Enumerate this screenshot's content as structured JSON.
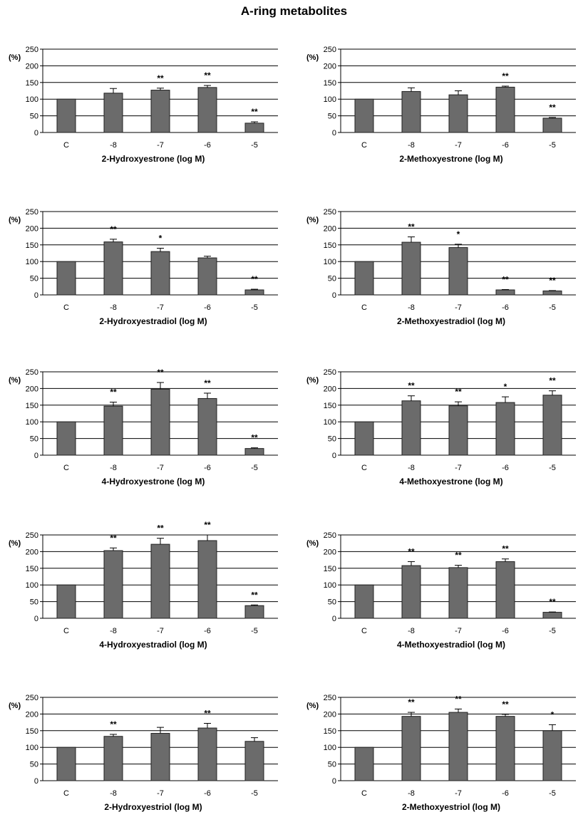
{
  "title": "A-ring metabolites",
  "colors": {
    "bar": "#6b6b6b",
    "axis": "#000000",
    "grid": "#000000"
  },
  "chart_data": [
    {
      "type": "bar",
      "xlabel": "2-Hydroxyestrone (log M)",
      "ylabel": "(%)",
      "categories": [
        "C",
        "-8",
        "-7",
        "-6",
        "-5"
      ],
      "values": [
        100,
        118,
        127,
        135,
        28
      ],
      "errors": [
        0,
        14,
        6,
        6,
        4
      ],
      "significance": [
        "",
        "",
        "**",
        "**",
        "**"
      ],
      "ylim": [
        0,
        250
      ],
      "yticks": [
        0,
        50,
        100,
        150,
        200,
        250
      ],
      "grid": true
    },
    {
      "type": "bar",
      "xlabel": "2-Methoxyestrone (log M)",
      "ylabel": "(%)",
      "categories": [
        "C",
        "-8",
        "-7",
        "-6",
        "-5"
      ],
      "values": [
        100,
        123,
        113,
        136,
        43
      ],
      "errors": [
        0,
        11,
        12,
        3,
        2
      ],
      "significance": [
        "",
        "",
        "",
        "**",
        "**"
      ],
      "ylim": [
        0,
        250
      ],
      "yticks": [
        0,
        50,
        100,
        150,
        200,
        250
      ],
      "grid": true
    },
    {
      "type": "bar",
      "xlabel": "2-Hydroxyestradiol (log M)",
      "ylabel": "(%)",
      "categories": [
        "C",
        "-8",
        "-7",
        "-6",
        "-5"
      ],
      "values": [
        100,
        159,
        130,
        111,
        15
      ],
      "errors": [
        0,
        8,
        10,
        5,
        2
      ],
      "significance": [
        "",
        "**",
        "*",
        "",
        "**"
      ],
      "ylim": [
        0,
        250
      ],
      "yticks": [
        0,
        50,
        100,
        150,
        200,
        250
      ],
      "grid": true
    },
    {
      "type": "bar",
      "xlabel": "2-Methoxyestradiol (log M)",
      "ylabel": "(%)",
      "categories": [
        "C",
        "-8",
        "-7",
        "-6",
        "-5"
      ],
      "values": [
        100,
        158,
        142,
        15,
        12
      ],
      "errors": [
        0,
        16,
        10,
        1,
        1
      ],
      "significance": [
        "",
        "**",
        "*",
        "**",
        "**"
      ],
      "ylim": [
        0,
        250
      ],
      "yticks": [
        0,
        50,
        100,
        150,
        200,
        250
      ],
      "grid": true
    },
    {
      "type": "bar",
      "xlabel": "4-Hydroxyestrone (log M)",
      "ylabel": "(%)",
      "categories": [
        "C",
        "-8",
        "-7",
        "-6",
        "-5"
      ],
      "values": [
        100,
        147,
        198,
        170,
        20
      ],
      "errors": [
        0,
        12,
        20,
        16,
        2
      ],
      "significance": [
        "",
        "**",
        "**",
        "**",
        "**"
      ],
      "ylim": [
        0,
        250
      ],
      "yticks": [
        0,
        50,
        100,
        150,
        200,
        250
      ],
      "grid": true
    },
    {
      "type": "bar",
      "xlabel": "4-Methoxyestrone (log M)",
      "ylabel": "(%)",
      "categories": [
        "C",
        "-8",
        "-7",
        "-6",
        "-5"
      ],
      "values": [
        100,
        163,
        148,
        158,
        180
      ],
      "errors": [
        0,
        15,
        12,
        17,
        13
      ],
      "significance": [
        "",
        "**",
        "**",
        "*",
        "**"
      ],
      "ylim": [
        0,
        250
      ],
      "yticks": [
        0,
        50,
        100,
        150,
        200,
        250
      ],
      "grid": true
    },
    {
      "type": "bar",
      "xlabel": "4-Hydroxyestradiol (log M)",
      "ylabel": "(%)",
      "categories": [
        "C",
        "-8",
        "-7",
        "-6",
        "-5"
      ],
      "values": [
        100,
        203,
        222,
        233,
        38
      ],
      "errors": [
        0,
        8,
        18,
        17,
        2
      ],
      "significance": [
        "",
        "**",
        "**",
        "**",
        "**"
      ],
      "ylim": [
        0,
        250
      ],
      "yticks": [
        0,
        50,
        100,
        150,
        200,
        250
      ],
      "grid": true
    },
    {
      "type": "bar",
      "xlabel": "4-Methoxyestradiol (log M)",
      "ylabel": "(%)",
      "categories": [
        "C",
        "-8",
        "-7",
        "-6",
        "-5"
      ],
      "values": [
        100,
        158,
        152,
        170,
        18
      ],
      "errors": [
        0,
        12,
        7,
        8,
        1
      ],
      "significance": [
        "",
        "**",
        "**",
        "**",
        "**"
      ],
      "ylim": [
        0,
        250
      ],
      "yticks": [
        0,
        50,
        100,
        150,
        200,
        250
      ],
      "grid": true
    },
    {
      "type": "bar",
      "xlabel": "2-Hydroxyestriol (log M)",
      "ylabel": "(%)",
      "categories": [
        "C",
        "-8",
        "-7",
        "-6",
        "-5"
      ],
      "values": [
        100,
        133,
        142,
        158,
        118
      ],
      "errors": [
        0,
        6,
        18,
        14,
        11
      ],
      "significance": [
        "",
        "**",
        "",
        "**",
        ""
      ],
      "ylim": [
        0,
        250
      ],
      "yticks": [
        0,
        50,
        100,
        150,
        200,
        250
      ],
      "grid": true
    },
    {
      "type": "bar",
      "xlabel": "2-Methoxyestriol (log M)",
      "ylabel": "(%)",
      "categories": [
        "C",
        "-8",
        "-7",
        "-6",
        "-5"
      ],
      "values": [
        100,
        193,
        205,
        193,
        150
      ],
      "errors": [
        0,
        12,
        10,
        6,
        18
      ],
      "significance": [
        "",
        "**",
        "**",
        "**",
        "*"
      ],
      "ylim": [
        0,
        250
      ],
      "yticks": [
        0,
        50,
        100,
        150,
        200,
        250
      ],
      "grid": true
    }
  ]
}
